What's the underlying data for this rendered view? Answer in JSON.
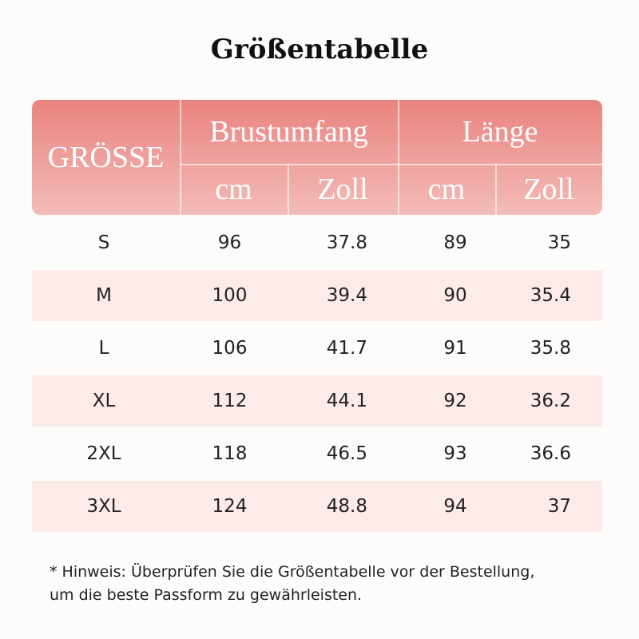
{
  "title": "Größentabelle",
  "table": {
    "header": {
      "size": "GRÖSSE",
      "groups": [
        "Brustumfang",
        "Länge"
      ],
      "units": [
        "cm",
        "Zoll",
        "cm",
        "Zoll"
      ]
    },
    "rows": [
      [
        "S",
        "96",
        "37.8",
        "89",
        "35"
      ],
      [
        "M",
        "100",
        "39.4",
        "90",
        "35.4"
      ],
      [
        "L",
        "106",
        "41.7",
        "91",
        "35.8"
      ],
      [
        "XL",
        "112",
        "44.1",
        "92",
        "36.2"
      ],
      [
        "2XL",
        "118",
        "46.5",
        "93",
        "36.6"
      ],
      [
        "3XL",
        "124",
        "48.8",
        "94",
        "37"
      ]
    ]
  },
  "note": [
    "* Hinweis: Überprüfen Sie die Größentabelle vor der Bestellung,",
    "um die beste Passform zu gewährleisten."
  ]
}
